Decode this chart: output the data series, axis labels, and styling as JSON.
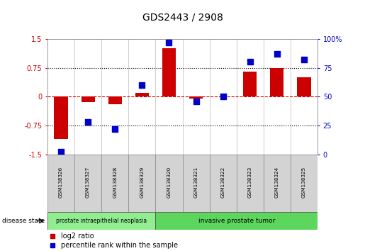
{
  "title": "GDS2443 / 2908",
  "samples": [
    "GSM138326",
    "GSM138327",
    "GSM138328",
    "GSM138329",
    "GSM138320",
    "GSM138321",
    "GSM138322",
    "GSM138323",
    "GSM138324",
    "GSM138325"
  ],
  "log2_ratio": [
    -1.1,
    -0.15,
    -0.2,
    0.1,
    1.25,
    -0.05,
    0.0,
    0.65,
    0.75,
    0.5
  ],
  "percentile_rank": [
    2,
    28,
    22,
    60,
    97,
    46,
    50,
    80,
    87,
    82
  ],
  "ylim_left": [
    -1.5,
    1.5
  ],
  "ylim_right": [
    0,
    100
  ],
  "yticks_left": [
    -1.5,
    -0.75,
    0,
    0.75,
    1.5
  ],
  "yticks_right": [
    0,
    25,
    50,
    75,
    100
  ],
  "ytick_labels_left": [
    "-1.5",
    "-0.75",
    "0",
    "0.75",
    "1.5"
  ],
  "ytick_labels_right": [
    "0",
    "25",
    "50",
    "75",
    "100%"
  ],
  "bar_color": "#cc0000",
  "dot_color": "#0000cc",
  "bar_width": 0.5,
  "dot_size": 30,
  "hline_color": "#cc0000",
  "dotted_line_color": "#000000",
  "group1_label": "prostate intraepithelial neoplasia",
  "group2_label": "invasive prostate tumor",
  "group1_indices": [
    0,
    1,
    2,
    3
  ],
  "group2_indices": [
    4,
    5,
    6,
    7,
    8,
    9
  ],
  "group1_color": "#90ee90",
  "group2_color": "#5cd65c",
  "disease_state_label": "disease state",
  "legend1_label": "log2 ratio",
  "legend2_label": "percentile rank within the sample",
  "box_color": "#bbbbbb",
  "spine_color": "#999999"
}
